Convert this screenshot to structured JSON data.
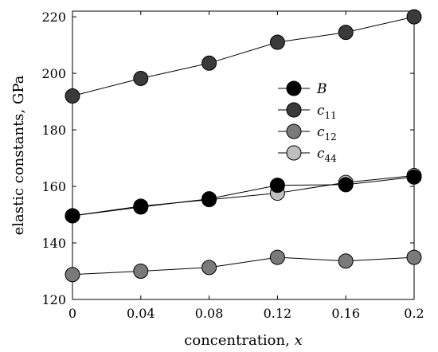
{
  "chart_data": {
    "type": "line",
    "xlabel": "concentration, x",
    "ylabel": "elastic constants, GPa",
    "x": [
      0,
      0.04,
      0.08,
      0.12,
      0.16,
      0.2
    ],
    "x_ticks": [
      "0",
      "0.04",
      "0.08",
      "0.12",
      "0.16",
      "0.2"
    ],
    "y_ticks": [
      "120",
      "140",
      "160",
      "180",
      "200",
      "220"
    ],
    "xlim": [
      0,
      0.2
    ],
    "ylim": [
      120,
      222
    ],
    "grid": false,
    "legend_position": "upper-right",
    "series": [
      {
        "name": "B",
        "color": "#000000",
        "values": [
          149.6,
          152.7,
          155.6,
          160.4,
          160.6,
          163.3
        ]
      },
      {
        "name": "c11",
        "color": "#3a3a3a",
        "values": [
          192.0,
          198.2,
          203.6,
          211.0,
          214.5,
          220.0
        ]
      },
      {
        "name": "c12",
        "color": "#7a7a7a",
        "values": [
          128.8,
          130.0,
          131.3,
          134.9,
          133.6,
          134.9
        ]
      },
      {
        "name": "c44",
        "color": "#bfbfbf",
        "values": [
          149.6,
          153.0,
          155.3,
          157.6,
          161.4,
          163.8
        ]
      }
    ]
  }
}
